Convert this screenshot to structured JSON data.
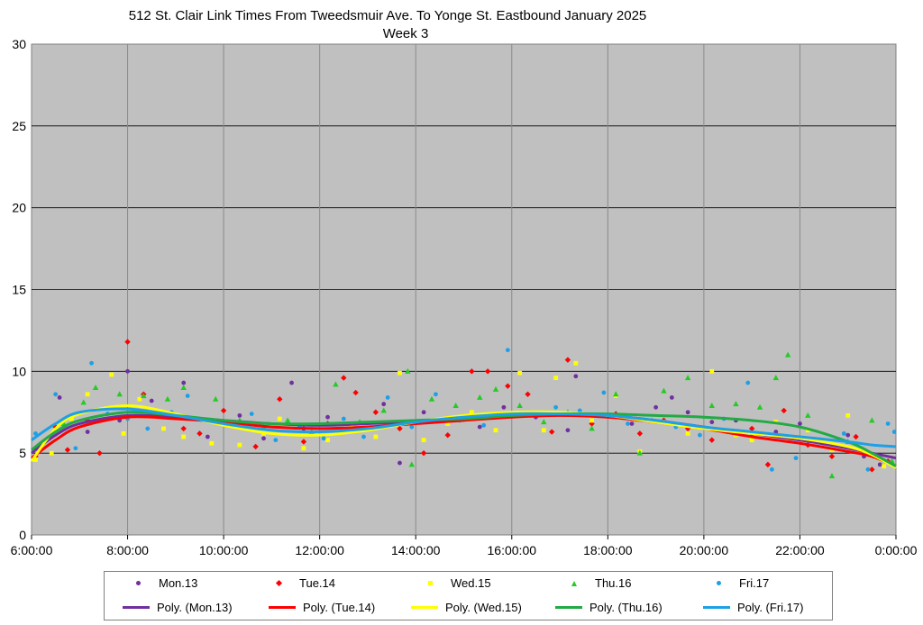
{
  "chart_data": {
    "type": "scatter",
    "title": "512 St. Clair Link Times From Tweedsmuir Ave. To Yonge St. Eastbound January 2025",
    "subtitle": "Week 3",
    "xlabel": "",
    "ylabel": "",
    "ylim": [
      0,
      30
    ],
    "xlim": [
      "6:00:00",
      "0:00:00"
    ],
    "yticks": [
      0,
      5,
      10,
      15,
      20,
      25,
      30
    ],
    "xticks": [
      "6:00:00",
      "8:00:00",
      "10:00:00",
      "12:00:00",
      "14:00:00",
      "16:00:00",
      "18:00:00",
      "20:00:00",
      "22:00:00",
      "0:00:00"
    ],
    "grid": true,
    "legend_position": "bottom",
    "series": [
      {
        "name": "Mon.13",
        "color": "#7030a0",
        "marker": "circle",
        "x": [
          "6:05",
          "6:35",
          "7:10",
          "7:50",
          "8:00",
          "8:30",
          "9:10",
          "9:40",
          "10:20",
          "10:50",
          "11:25",
          "11:40",
          "12:10",
          "12:40",
          "13:20",
          "13:40",
          "14:10",
          "14:40",
          "15:20",
          "15:50",
          "16:30",
          "17:10",
          "17:20",
          "17:40",
          "18:30",
          "19:00",
          "19:20",
          "19:40",
          "20:10",
          "20:40",
          "21:00",
          "21:30",
          "22:00",
          "22:30",
          "23:00",
          "23:20",
          "23:40"
        ],
        "y": [
          5.3,
          8.4,
          6.3,
          7.0,
          10.0,
          8.2,
          9.3,
          6.0,
          7.3,
          5.9,
          9.3,
          6.5,
          7.2,
          6.8,
          8.0,
          4.4,
          7.5,
          6.9,
          6.6,
          7.8,
          7.2,
          6.4,
          9.7,
          7.0,
          6.8,
          7.8,
          8.4,
          7.5,
          6.9,
          7.0,
          6.2,
          6.3,
          6.8,
          5.6,
          6.1,
          4.8,
          4.3
        ]
      },
      {
        "name": "Tue.14",
        "color": "#ff0000",
        "marker": "diamond",
        "x": [
          "6:05",
          "6:30",
          "6:45",
          "7:10",
          "7:25",
          "8:00",
          "8:20",
          "8:40",
          "9:10",
          "9:30",
          "10:00",
          "10:40",
          "11:10",
          "11:40",
          "12:10",
          "12:30",
          "12:45",
          "13:10",
          "13:40",
          "14:10",
          "14:40",
          "15:10",
          "15:30",
          "15:55",
          "16:20",
          "16:50",
          "17:10",
          "17:40",
          "18:10",
          "18:40",
          "19:10",
          "19:40",
          "20:10",
          "20:40",
          "21:00",
          "21:20",
          "21:40",
          "22:10",
          "22:40",
          "23:10",
          "23:30",
          "23:50"
        ],
        "y": [
          4.8,
          6.6,
          5.2,
          7.0,
          5.0,
          11.8,
          8.6,
          7.3,
          6.5,
          6.2,
          7.6,
          5.4,
          8.3,
          5.7,
          6.8,
          9.6,
          8.7,
          7.5,
          6.5,
          5.0,
          6.1,
          10.0,
          10.0,
          9.1,
          8.6,
          6.3,
          10.7,
          6.8,
          7.4,
          6.2,
          7.0,
          6.5,
          5.8,
          6.3,
          6.5,
          4.3,
          7.6,
          5.5,
          4.8,
          6.0,
          4.0,
          4.5
        ]
      },
      {
        "name": "Wed.15",
        "color": "#ffff00",
        "marker": "square",
        "x": [
          "6:05",
          "6:25",
          "6:50",
          "7:10",
          "7:40",
          "7:55",
          "8:15",
          "8:45",
          "9:10",
          "9:45",
          "10:20",
          "10:50",
          "11:10",
          "11:40",
          "12:10",
          "12:40",
          "13:10",
          "13:40",
          "14:10",
          "14:40",
          "15:10",
          "15:40",
          "16:10",
          "16:40",
          "16:55",
          "17:20",
          "17:40",
          "18:10",
          "18:40",
          "19:10",
          "19:40",
          "20:10",
          "20:40",
          "21:00",
          "21:30",
          "22:10",
          "22:40",
          "23:00",
          "23:20",
          "23:45"
        ],
        "y": [
          4.6,
          5.0,
          7.1,
          8.6,
          9.8,
          6.2,
          8.3,
          6.5,
          6.0,
          5.6,
          5.5,
          6.2,
          7.1,
          5.3,
          5.8,
          6.6,
          6.0,
          9.9,
          5.8,
          6.8,
          7.5,
          6.4,
          9.9,
          6.4,
          9.6,
          10.5,
          7.0,
          8.5,
          5.1,
          6.9,
          6.2,
          10.0,
          6.1,
          5.8,
          6.9,
          6.4,
          5.2,
          7.3,
          5.0,
          4.2
        ]
      },
      {
        "name": "Thu.16",
        "color": "#22cc22",
        "marker": "triangle",
        "x": [
          "6:10",
          "6:40",
          "7:05",
          "7:20",
          "7:50",
          "8:20",
          "8:50",
          "9:10",
          "9:50",
          "10:20",
          "10:50",
          "11:20",
          "11:50",
          "12:20",
          "12:50",
          "13:20",
          "13:50",
          "13:55",
          "14:20",
          "14:50",
          "15:20",
          "15:40",
          "16:10",
          "16:40",
          "17:10",
          "17:40",
          "18:10",
          "18:40",
          "19:10",
          "19:40",
          "20:10",
          "20:40",
          "21:10",
          "21:30",
          "21:45",
          "22:10",
          "22:40",
          "23:00",
          "23:30",
          "23:55"
        ],
        "y": [
          5.5,
          6.8,
          8.1,
          9.0,
          8.6,
          8.5,
          8.3,
          9.0,
          8.3,
          7.0,
          6.6,
          7.0,
          6.3,
          9.2,
          6.9,
          7.6,
          10.0,
          4.3,
          8.3,
          7.9,
          8.4,
          8.9,
          7.9,
          6.9,
          7.5,
          6.5,
          8.6,
          5.0,
          8.8,
          9.6,
          7.9,
          8.0,
          7.8,
          9.6,
          11.0,
          7.3,
          3.6,
          5.7,
          7.0,
          4.5
        ]
      },
      {
        "name": "Fri.17",
        "color": "#1ea0e6",
        "marker": "circle",
        "x": [
          "6:05",
          "6:30",
          "6:55",
          "7:15",
          "7:35",
          "8:00",
          "8:25",
          "8:55",
          "9:15",
          "9:40",
          "10:10",
          "10:35",
          "11:05",
          "11:35",
          "12:05",
          "12:30",
          "12:55",
          "13:25",
          "13:55",
          "14:25",
          "14:55",
          "15:25",
          "15:55",
          "16:25",
          "16:55",
          "17:25",
          "17:55",
          "18:25",
          "18:55",
          "19:25",
          "19:55",
          "20:25",
          "20:55",
          "21:25",
          "21:55",
          "22:25",
          "22:55",
          "23:25",
          "23:50",
          "23:58"
        ],
        "y": [
          6.2,
          8.6,
          5.3,
          10.5,
          7.4,
          7.1,
          6.5,
          7.5,
          8.5,
          7.0,
          6.8,
          7.4,
          5.8,
          6.6,
          5.9,
          7.1,
          6.0,
          8.4,
          6.6,
          8.6,
          7.0,
          6.7,
          11.3,
          7.3,
          7.8,
          7.6,
          8.7,
          6.8,
          7.0,
          6.6,
          6.1,
          7.1,
          9.3,
          4.0,
          4.7,
          5.8,
          6.2,
          4.0,
          6.8,
          6.3
        ]
      }
    ],
    "trendlines": [
      {
        "name": "Poly. (Mon.13)",
        "color": "#7030a0",
        "x": [
          "6:00",
          "6:30",
          "7:00",
          "8:00",
          "9:00",
          "10:00",
          "11:00",
          "12:00",
          "13:00",
          "14:00",
          "15:00",
          "16:00",
          "17:00",
          "18:00",
          "19:00",
          "20:00",
          "21:00",
          "22:00",
          "23:00",
          "23:30",
          "24:00"
        ],
        "y": [
          5.0,
          6.1,
          6.8,
          7.3,
          7.2,
          7.0,
          6.8,
          6.7,
          6.8,
          6.9,
          7.1,
          7.3,
          7.4,
          7.3,
          7.0,
          6.6,
          6.2,
          5.8,
          5.3,
          5.0,
          4.7
        ]
      },
      {
        "name": "Poly. (Tue.14)",
        "color": "#ff0000",
        "x": [
          "6:00",
          "6:30",
          "7:00",
          "8:00",
          "9:00",
          "10:00",
          "11:00",
          "12:00",
          "13:00",
          "14:00",
          "15:00",
          "16:00",
          "17:00",
          "18:00",
          "19:00",
          "20:00",
          "21:00",
          "22:00",
          "23:00",
          "23:30",
          "24:00"
        ],
        "y": [
          4.7,
          5.8,
          6.6,
          7.2,
          7.1,
          6.9,
          6.6,
          6.5,
          6.6,
          6.8,
          7.0,
          7.2,
          7.3,
          7.2,
          6.9,
          6.5,
          6.0,
          5.6,
          5.1,
          4.8,
          4.2
        ]
      },
      {
        "name": "Poly. (Wed.15)",
        "color": "#ffff00",
        "x": [
          "6:00",
          "6:30",
          "7:00",
          "8:00",
          "9:00",
          "10:00",
          "11:00",
          "12:00",
          "13:00",
          "14:00",
          "15:00",
          "16:00",
          "17:00",
          "18:00",
          "19:00",
          "20:00",
          "21:00",
          "22:00",
          "23:00",
          "23:30",
          "24:00"
        ],
        "y": [
          4.5,
          6.5,
          7.4,
          7.9,
          7.4,
          6.7,
          6.2,
          6.1,
          6.4,
          6.9,
          7.3,
          7.5,
          7.5,
          7.3,
          6.9,
          6.5,
          6.2,
          5.9,
          5.4,
          4.9,
          4.1
        ]
      },
      {
        "name": "Poly. (Thu.16)",
        "color": "#22aa44",
        "x": [
          "6:00",
          "6:30",
          "7:00",
          "8:00",
          "9:00",
          "10:00",
          "11:00",
          "12:00",
          "13:00",
          "14:00",
          "15:00",
          "16:00",
          "17:00",
          "18:00",
          "19:00",
          "20:00",
          "21:00",
          "22:00",
          "23:00",
          "23:30",
          "24:00"
        ],
        "y": [
          5.2,
          6.3,
          7.0,
          7.5,
          7.3,
          7.0,
          6.8,
          6.8,
          6.9,
          7.0,
          7.1,
          7.3,
          7.4,
          7.4,
          7.3,
          7.2,
          7.0,
          6.6,
          5.7,
          5.0,
          4.2
        ]
      },
      {
        "name": "Poly. (Fri.17)",
        "color": "#1ea0e6",
        "x": [
          "6:00",
          "6:30",
          "7:00",
          "8:00",
          "9:00",
          "10:00",
          "11:00",
          "12:00",
          "13:00",
          "14:00",
          "15:00",
          "16:00",
          "17:00",
          "18:00",
          "19:00",
          "20:00",
          "21:00",
          "22:00",
          "23:00",
          "23:30",
          "24:00"
        ],
        "y": [
          5.8,
          6.8,
          7.5,
          7.7,
          7.3,
          6.8,
          6.4,
          6.3,
          6.5,
          6.9,
          7.2,
          7.4,
          7.4,
          7.3,
          7.0,
          6.6,
          6.3,
          6.0,
          5.7,
          5.5,
          5.4
        ]
      }
    ]
  },
  "legend": {
    "row1": [
      "Mon.13",
      "Tue.14",
      "Wed.15",
      "Thu.16",
      "Fri.17"
    ],
    "row2": [
      "Poly. (Mon.13)",
      "Poly. (Tue.14)",
      "Poly. (Wed.15)",
      "Poly. (Thu.16)",
      "Poly. (Fri.17)"
    ]
  }
}
